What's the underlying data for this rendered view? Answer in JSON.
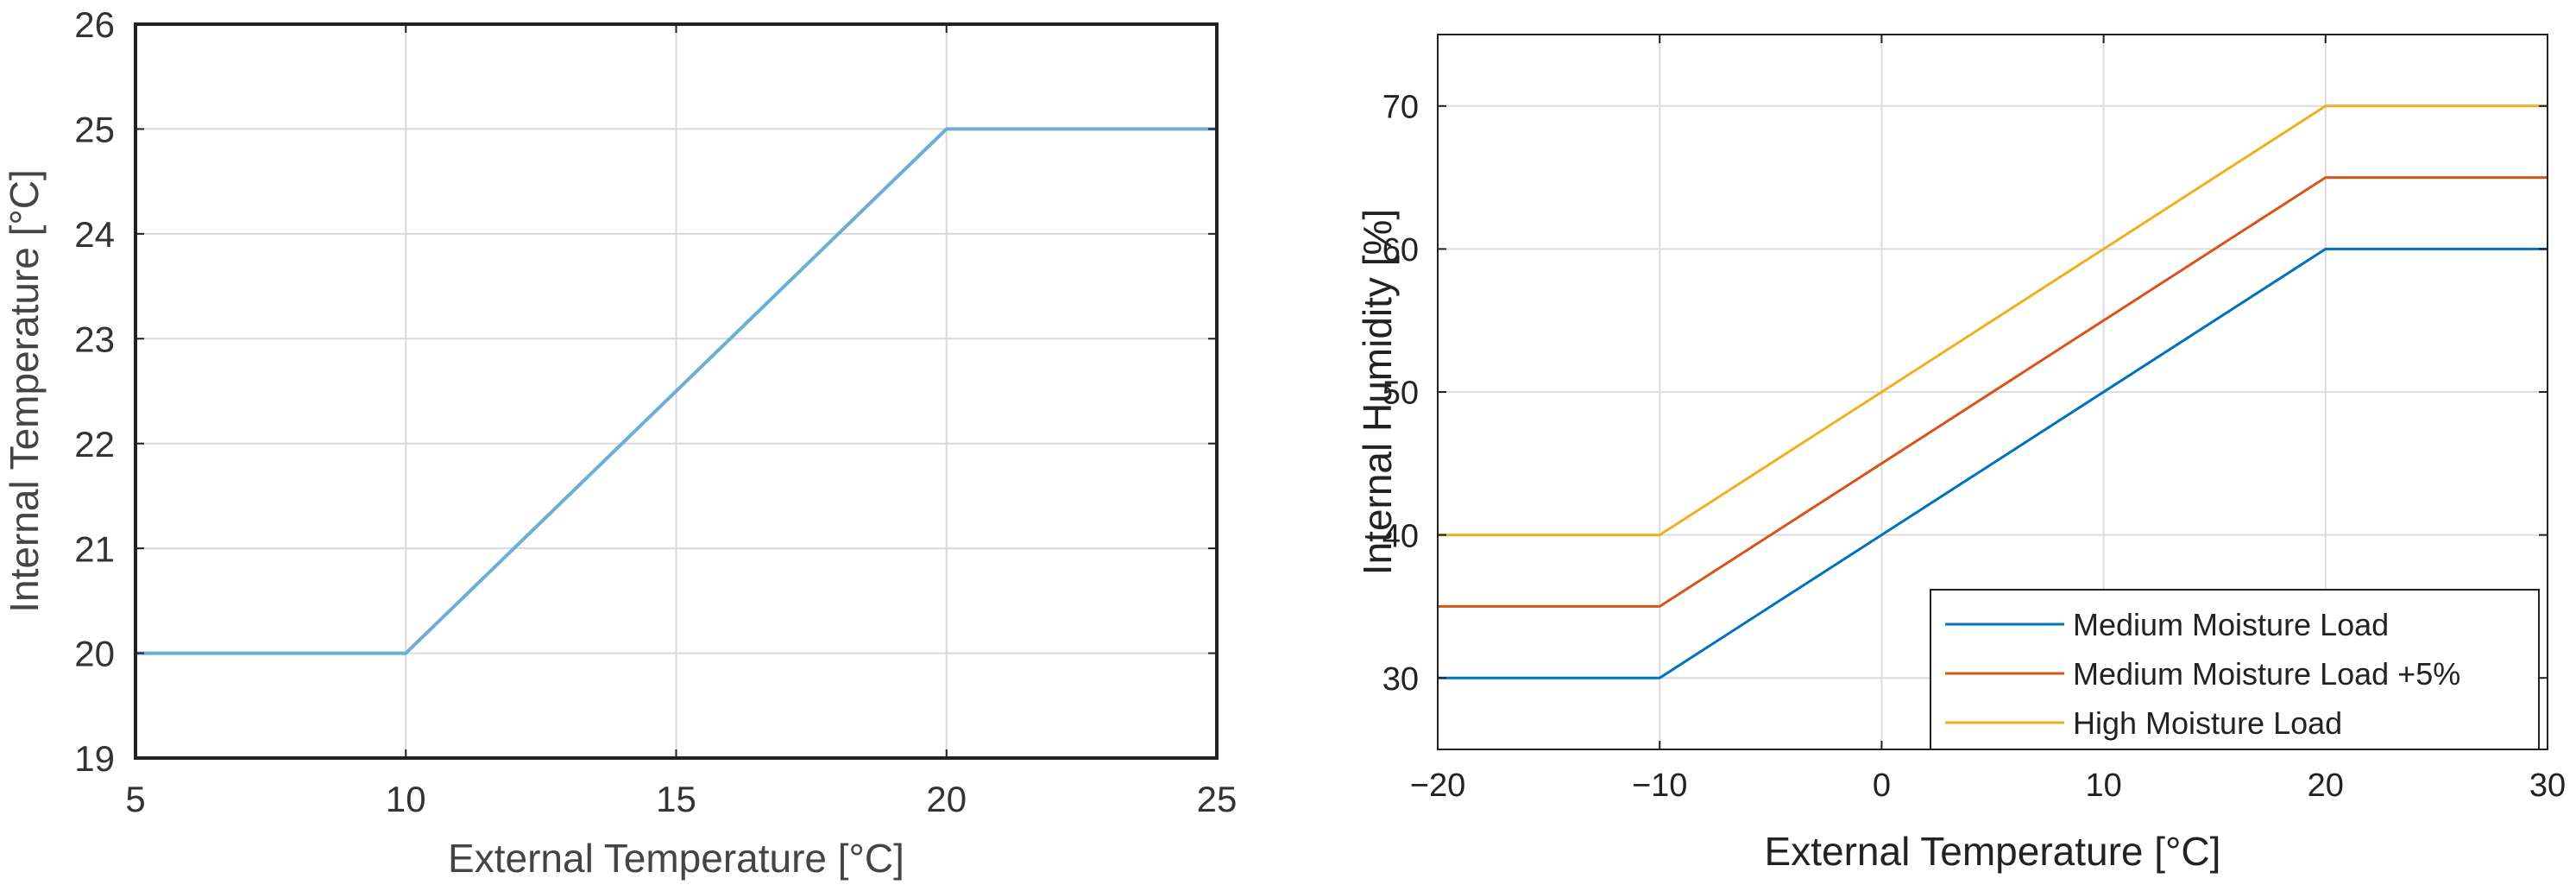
{
  "chart_data": [
    {
      "type": "line",
      "title": "",
      "xlabel": "External Temperature [°C]",
      "ylabel": "Internal Temperature [°C]",
      "xlim": [
        5,
        25
      ],
      "ylim": [
        19,
        26
      ],
      "xticks": [
        5,
        10,
        15,
        20,
        25
      ],
      "yticks": [
        19,
        20,
        21,
        22,
        23,
        24,
        25,
        26
      ],
      "xtick_labels": [
        "5",
        "10",
        "15",
        "20",
        "25"
      ],
      "ytick_labels": [
        "19",
        "20",
        "21",
        "22",
        "23",
        "24",
        "25",
        "26"
      ],
      "grid": true,
      "series": [
        {
          "name": "",
          "color": "#6baed6",
          "x": [
            5,
            10,
            20,
            25
          ],
          "y": [
            20,
            20,
            25,
            25
          ]
        }
      ]
    },
    {
      "type": "line",
      "title": "",
      "xlabel": "External Temperature [°C]",
      "ylabel": "Internal Humidity [%]",
      "xlim": [
        -20,
        30
      ],
      "ylim": [
        25,
        75
      ],
      "xticks": [
        -20,
        -10,
        0,
        10,
        20,
        30
      ],
      "yticks": [
        30,
        40,
        50,
        60,
        70
      ],
      "xtick_labels": [
        "−20",
        "−10",
        "0",
        "10",
        "20",
        "30"
      ],
      "ytick_labels": [
        "30",
        "40",
        "50",
        "60",
        "70"
      ],
      "grid": true,
      "legend": "bottom-right",
      "series": [
        {
          "name": "Medium Moisture Load",
          "color": "#0072bd",
          "x": [
            -20,
            -10,
            20,
            30
          ],
          "y": [
            30,
            30,
            60,
            60
          ]
        },
        {
          "name": "Medium Moisture Load +5%",
          "color": "#d95319",
          "x": [
            -20,
            -10,
            20,
            30
          ],
          "y": [
            35,
            35,
            65,
            65
          ]
        },
        {
          "name": "High Moisture Load",
          "color": "#edb120",
          "x": [
            -20,
            -10,
            20,
            30
          ],
          "y": [
            40,
            40,
            70,
            70
          ]
        }
      ]
    }
  ]
}
